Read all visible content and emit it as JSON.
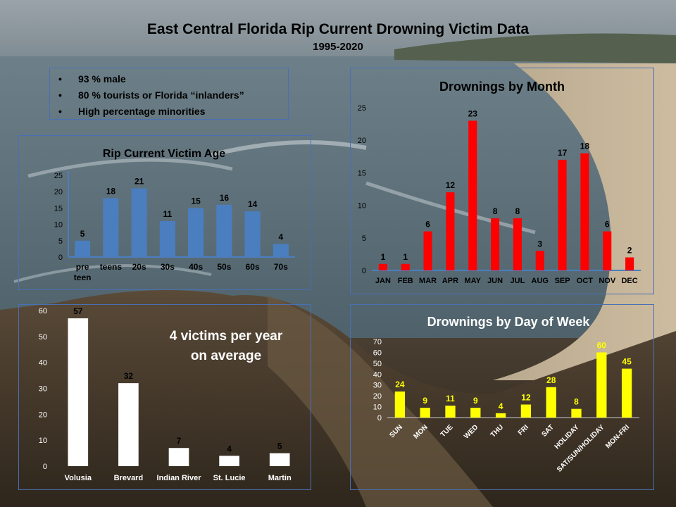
{
  "header": {
    "title": "East Central Florida Rip Current Drowning Victim Data",
    "subtitle": "1995-2020"
  },
  "facts": {
    "items": [
      "93 % male",
      "80 % tourists or Florida “inlanders”",
      "High percentage minorities"
    ],
    "bullet": "•"
  },
  "chart_data": [
    {
      "id": "age",
      "type": "bar",
      "title": "Rip Current Victim Age",
      "categories": [
        "pre teen",
        "teens",
        "20s",
        "30s",
        "40s",
        "50s",
        "60s",
        "70s"
      ],
      "values": [
        5,
        18,
        21,
        11,
        15,
        16,
        14,
        4
      ],
      "yticks": [
        0,
        5,
        10,
        15,
        20,
        25
      ],
      "ylim": [
        0,
        25
      ],
      "color": "#4a7ebf",
      "label_color": "#000000",
      "grid": false
    },
    {
      "id": "month",
      "type": "bar",
      "title": "Drownings by Month",
      "categories": [
        "JAN",
        "FEB",
        "MAR",
        "APR",
        "MAY",
        "JUN",
        "JUL",
        "AUG",
        "SEP",
        "OCT",
        "NOV",
        "DEC"
      ],
      "values": [
        1,
        1,
        6,
        12,
        23,
        8,
        8,
        3,
        17,
        18,
        6,
        2
      ],
      "yticks": [
        0,
        5,
        10,
        15,
        20,
        25
      ],
      "ylim": [
        0,
        25
      ],
      "color": "#ff0000",
      "label_color": "#000000",
      "grid": false
    },
    {
      "id": "county",
      "type": "bar",
      "title": "",
      "annotation": [
        "4 victims per year",
        "on average"
      ],
      "categories": [
        "Volusia",
        "Brevard",
        "Indian River",
        "St. Lucie",
        "Martin"
      ],
      "values": [
        57,
        32,
        7,
        4,
        5
      ],
      "yticks": [
        0,
        10,
        20,
        30,
        40,
        50,
        60
      ],
      "ylim": [
        0,
        60
      ],
      "color": "#ffffff",
      "label_color": "#000000",
      "grid": false
    },
    {
      "id": "dow",
      "type": "bar",
      "title": "Drownings by Day of Week",
      "categories": [
        "SUN",
        "MON",
        "TUE",
        "WED",
        "THU",
        "FRI",
        "SAT",
        "HOLIDAY",
        "SAT/SUN/HOLIDAY",
        "MON-FRI"
      ],
      "values": [
        24,
        9,
        11,
        9,
        4,
        12,
        28,
        8,
        60,
        45
      ],
      "yticks": [
        0,
        10,
        20,
        30,
        40,
        50,
        60,
        70
      ],
      "ylim": [
        0,
        70
      ],
      "color": "#ffff00",
      "label_color": "#ffff00",
      "grid": false
    }
  ]
}
